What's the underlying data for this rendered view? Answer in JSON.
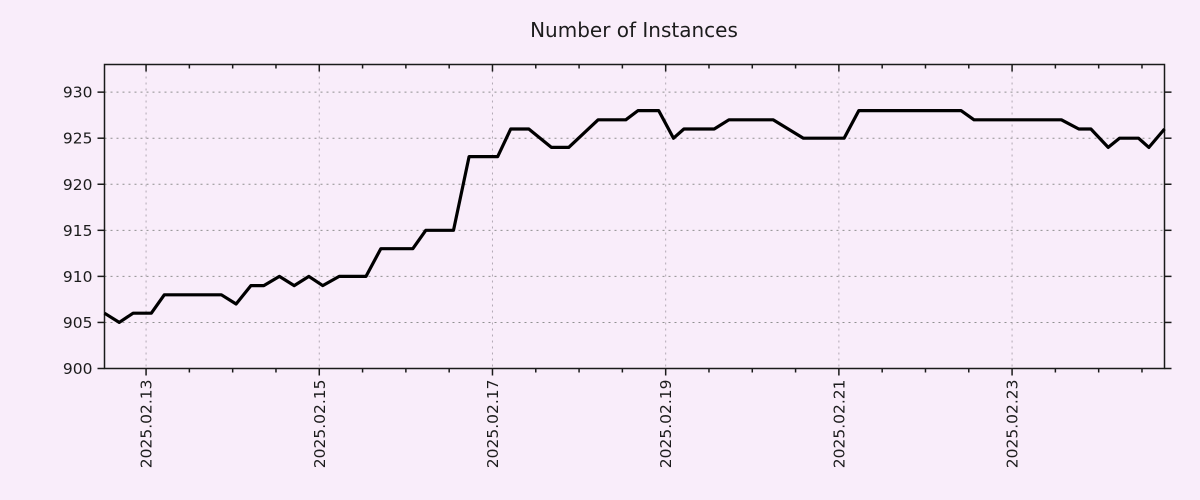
{
  "page": {
    "background": "#f9edfa"
  },
  "colors": {
    "background": "#f9edfa",
    "border": "#1a1a1a",
    "grid_horizontal": "#909090",
    "grid_vertical": "#b2a9b4",
    "text": "#1c1c1c",
    "line": "#000000"
  },
  "chart_data": {
    "type": "line",
    "title": "Number of Instances",
    "xlabel": "",
    "ylabel": "",
    "grid": "dotted",
    "legend": "none",
    "x_axis": {
      "unit": "date (Feb 2025, day-of-month fraction)",
      "lim_days": [
        12.52,
        24.76
      ],
      "major_tick_days": [
        13,
        15,
        17,
        19,
        21,
        23
      ],
      "major_tick_labels": [
        "2025.02.13",
        "2025.02.15",
        "2025.02.17",
        "2025.02.19",
        "2025.02.21",
        "2025.02.23"
      ],
      "minor_tick_step_days": 0.5
    },
    "y_axis": {
      "lim": [
        900,
        933
      ],
      "ticks": [
        900,
        905,
        910,
        915,
        920,
        925,
        930
      ],
      "tick_labels": [
        "900",
        "905",
        "910",
        "915",
        "920",
        "925",
        "930"
      ]
    },
    "series": [
      {
        "name": "Number of Instances",
        "color": "#000000",
        "points_day_value": [
          [
            12.52,
            906
          ],
          [
            12.69,
            905
          ],
          [
            12.85,
            906
          ],
          [
            13.06,
            906
          ],
          [
            13.21,
            908
          ],
          [
            13.87,
            908
          ],
          [
            14.04,
            907
          ],
          [
            14.21,
            909
          ],
          [
            14.36,
            909
          ],
          [
            14.54,
            910
          ],
          [
            14.71,
            909
          ],
          [
            14.88,
            910
          ],
          [
            15.04,
            909
          ],
          [
            15.23,
            910
          ],
          [
            15.54,
            910
          ],
          [
            15.71,
            913
          ],
          [
            16.08,
            913
          ],
          [
            16.23,
            915
          ],
          [
            16.55,
            915
          ],
          [
            16.73,
            923
          ],
          [
            17.06,
            923
          ],
          [
            17.21,
            926
          ],
          [
            17.42,
            926
          ],
          [
            17.68,
            924
          ],
          [
            17.88,
            924
          ],
          [
            18.22,
            927
          ],
          [
            18.54,
            927
          ],
          [
            18.68,
            928
          ],
          [
            18.92,
            928
          ],
          [
            19.09,
            925
          ],
          [
            19.21,
            926
          ],
          [
            19.56,
            926
          ],
          [
            19.73,
            927
          ],
          [
            20.24,
            927
          ],
          [
            20.59,
            925
          ],
          [
            21.06,
            925
          ],
          [
            21.23,
            928
          ],
          [
            22.41,
            928
          ],
          [
            22.56,
            927
          ],
          [
            23.57,
            927
          ],
          [
            23.77,
            926
          ],
          [
            23.91,
            926
          ],
          [
            24.11,
            924
          ],
          [
            24.24,
            925
          ],
          [
            24.46,
            925
          ],
          [
            24.58,
            924
          ],
          [
            24.76,
            926
          ]
        ]
      }
    ]
  }
}
